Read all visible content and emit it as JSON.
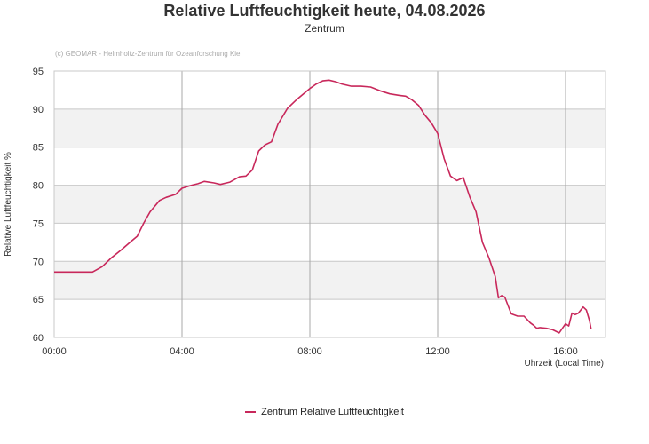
{
  "chart_data": {
    "type": "line",
    "title": "Relative Luftfeuchtigkeit heute, 04.08.2026",
    "subtitle": "Zentrum",
    "credit": "(c) GEOMAR - Helmholtz-Zentrum für Ozeanforschung Kiel",
    "ylabel": "Relative Luftfeuchtigkeit %",
    "xlabel": "Uhrzeit (Local Time)",
    "ylim": [
      60,
      95
    ],
    "yticks": [
      60,
      65,
      70,
      75,
      80,
      85,
      90,
      95
    ],
    "xlim": [
      0,
      17.25
    ],
    "xticks": [
      0,
      4,
      8,
      12,
      16
    ],
    "xtick_labels": [
      "00:00",
      "04:00",
      "08:00",
      "12:00",
      "16:00"
    ],
    "grid": true,
    "legend_position": "bottom-center",
    "series": [
      {
        "name": "Zentrum Relative Luftfeuchtigkeit",
        "color": "#c8285b",
        "x": [
          0,
          0.5,
          1.0,
          1.2,
          1.5,
          1.8,
          2.1,
          2.4,
          2.6,
          2.8,
          3.0,
          3.3,
          3.5,
          3.8,
          4.0,
          4.3,
          4.5,
          4.7,
          5.0,
          5.2,
          5.5,
          5.8,
          6.0,
          6.2,
          6.4,
          6.6,
          6.8,
          7.0,
          7.3,
          7.6,
          7.8,
          8.0,
          8.2,
          8.4,
          8.6,
          8.8,
          9.0,
          9.3,
          9.6,
          9.9,
          10.2,
          10.5,
          10.8,
          11.0,
          11.2,
          11.4,
          11.6,
          11.8,
          12.0,
          12.2,
          12.4,
          12.6,
          12.8,
          13.0,
          13.2,
          13.4,
          13.6,
          13.8,
          13.9,
          14.0,
          14.1,
          14.3,
          14.5,
          14.7,
          14.9,
          15.0,
          15.1,
          15.2,
          15.4,
          15.6,
          15.8,
          16.0,
          16.1,
          16.2,
          16.3,
          16.4,
          16.55,
          16.65,
          16.75,
          16.8
        ],
        "values": [
          68.6,
          68.6,
          68.6,
          68.6,
          69.3,
          70.5,
          71.5,
          72.6,
          73.3,
          75.0,
          76.5,
          78.0,
          78.4,
          78.8,
          79.6,
          80.0,
          80.2,
          80.5,
          80.3,
          80.1,
          80.4,
          81.1,
          81.2,
          82.0,
          84.5,
          85.3,
          85.7,
          88.0,
          90.1,
          91.3,
          92.0,
          92.7,
          93.3,
          93.7,
          93.8,
          93.6,
          93.3,
          93.0,
          93.0,
          92.9,
          92.4,
          92.0,
          91.8,
          91.7,
          91.2,
          90.5,
          89.2,
          88.2,
          86.8,
          83.5,
          81.2,
          80.6,
          81.0,
          78.5,
          76.5,
          72.5,
          70.5,
          68.0,
          65.2,
          65.5,
          65.3,
          63.1,
          62.8,
          62.8,
          61.9,
          61.6,
          61.2,
          61.3,
          61.2,
          61.0,
          60.6,
          61.8,
          61.5,
          63.2,
          63.0,
          63.2,
          64.0,
          63.6,
          62.2,
          61.1
        ]
      }
    ]
  }
}
